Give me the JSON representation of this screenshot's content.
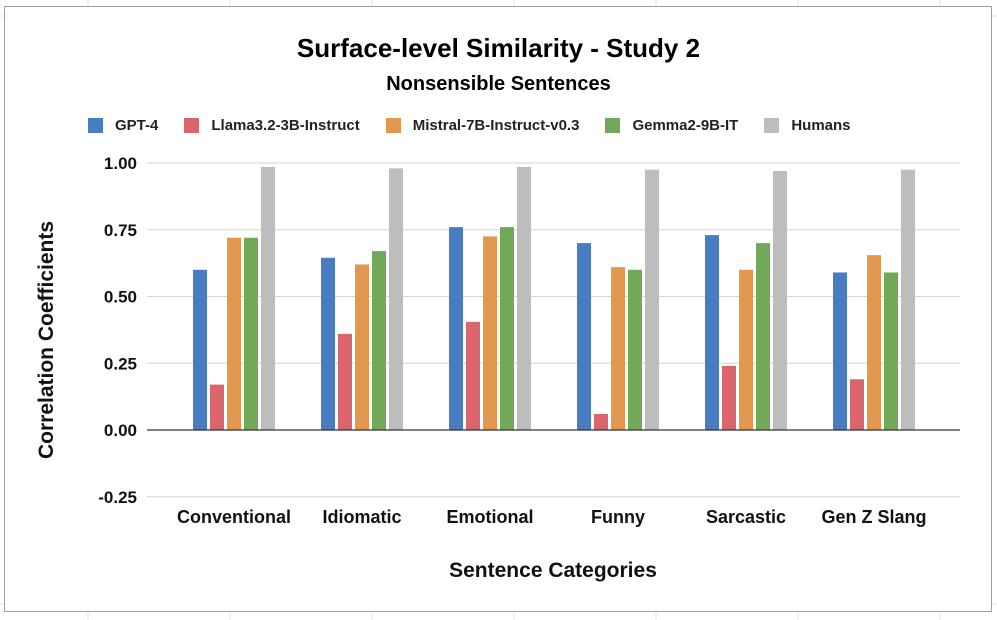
{
  "chart_data": {
    "type": "bar",
    "title": "Surface-level Similarity - Study 2",
    "subtitle": "Nonsensible Sentences",
    "xlabel": "Sentence Categories",
    "ylabel": "Correlation Coefficients",
    "ylim": [
      -0.25,
      1.0
    ],
    "yticks": [
      -0.25,
      0.0,
      0.25,
      0.5,
      0.75,
      1.0
    ],
    "ytick_labels": [
      "-0.25",
      "0.00",
      "0.25",
      "0.50",
      "0.75",
      "1.00"
    ],
    "grid": true,
    "legend_position": "top",
    "categories": [
      "Conventional",
      "Idiomatic",
      "Emotional",
      "Funny",
      "Sarcastic",
      "Gen Z Slang"
    ],
    "series": [
      {
        "name": "GPT-4",
        "color": "#4a7cc1",
        "values": [
          0.6,
          0.645,
          0.76,
          0.7,
          0.73,
          0.59
        ]
      },
      {
        "name": "Llama3.2-3B-Instruct",
        "color": "#d9666a",
        "values": [
          0.17,
          0.36,
          0.405,
          0.06,
          0.24,
          0.19
        ]
      },
      {
        "name": "Mistral-7B-Instruct-v0.3",
        "color": "#e3984f",
        "values": [
          0.72,
          0.62,
          0.725,
          0.61,
          0.6,
          0.655
        ]
      },
      {
        "name": "Gemma2-9B-IT",
        "color": "#72a85a",
        "values": [
          0.72,
          0.67,
          0.76,
          0.6,
          0.7,
          0.59
        ]
      },
      {
        "name": "Humans",
        "color": "#bdbdbd",
        "values": [
          0.985,
          0.98,
          0.985,
          0.975,
          0.97,
          0.975
        ]
      }
    ]
  }
}
